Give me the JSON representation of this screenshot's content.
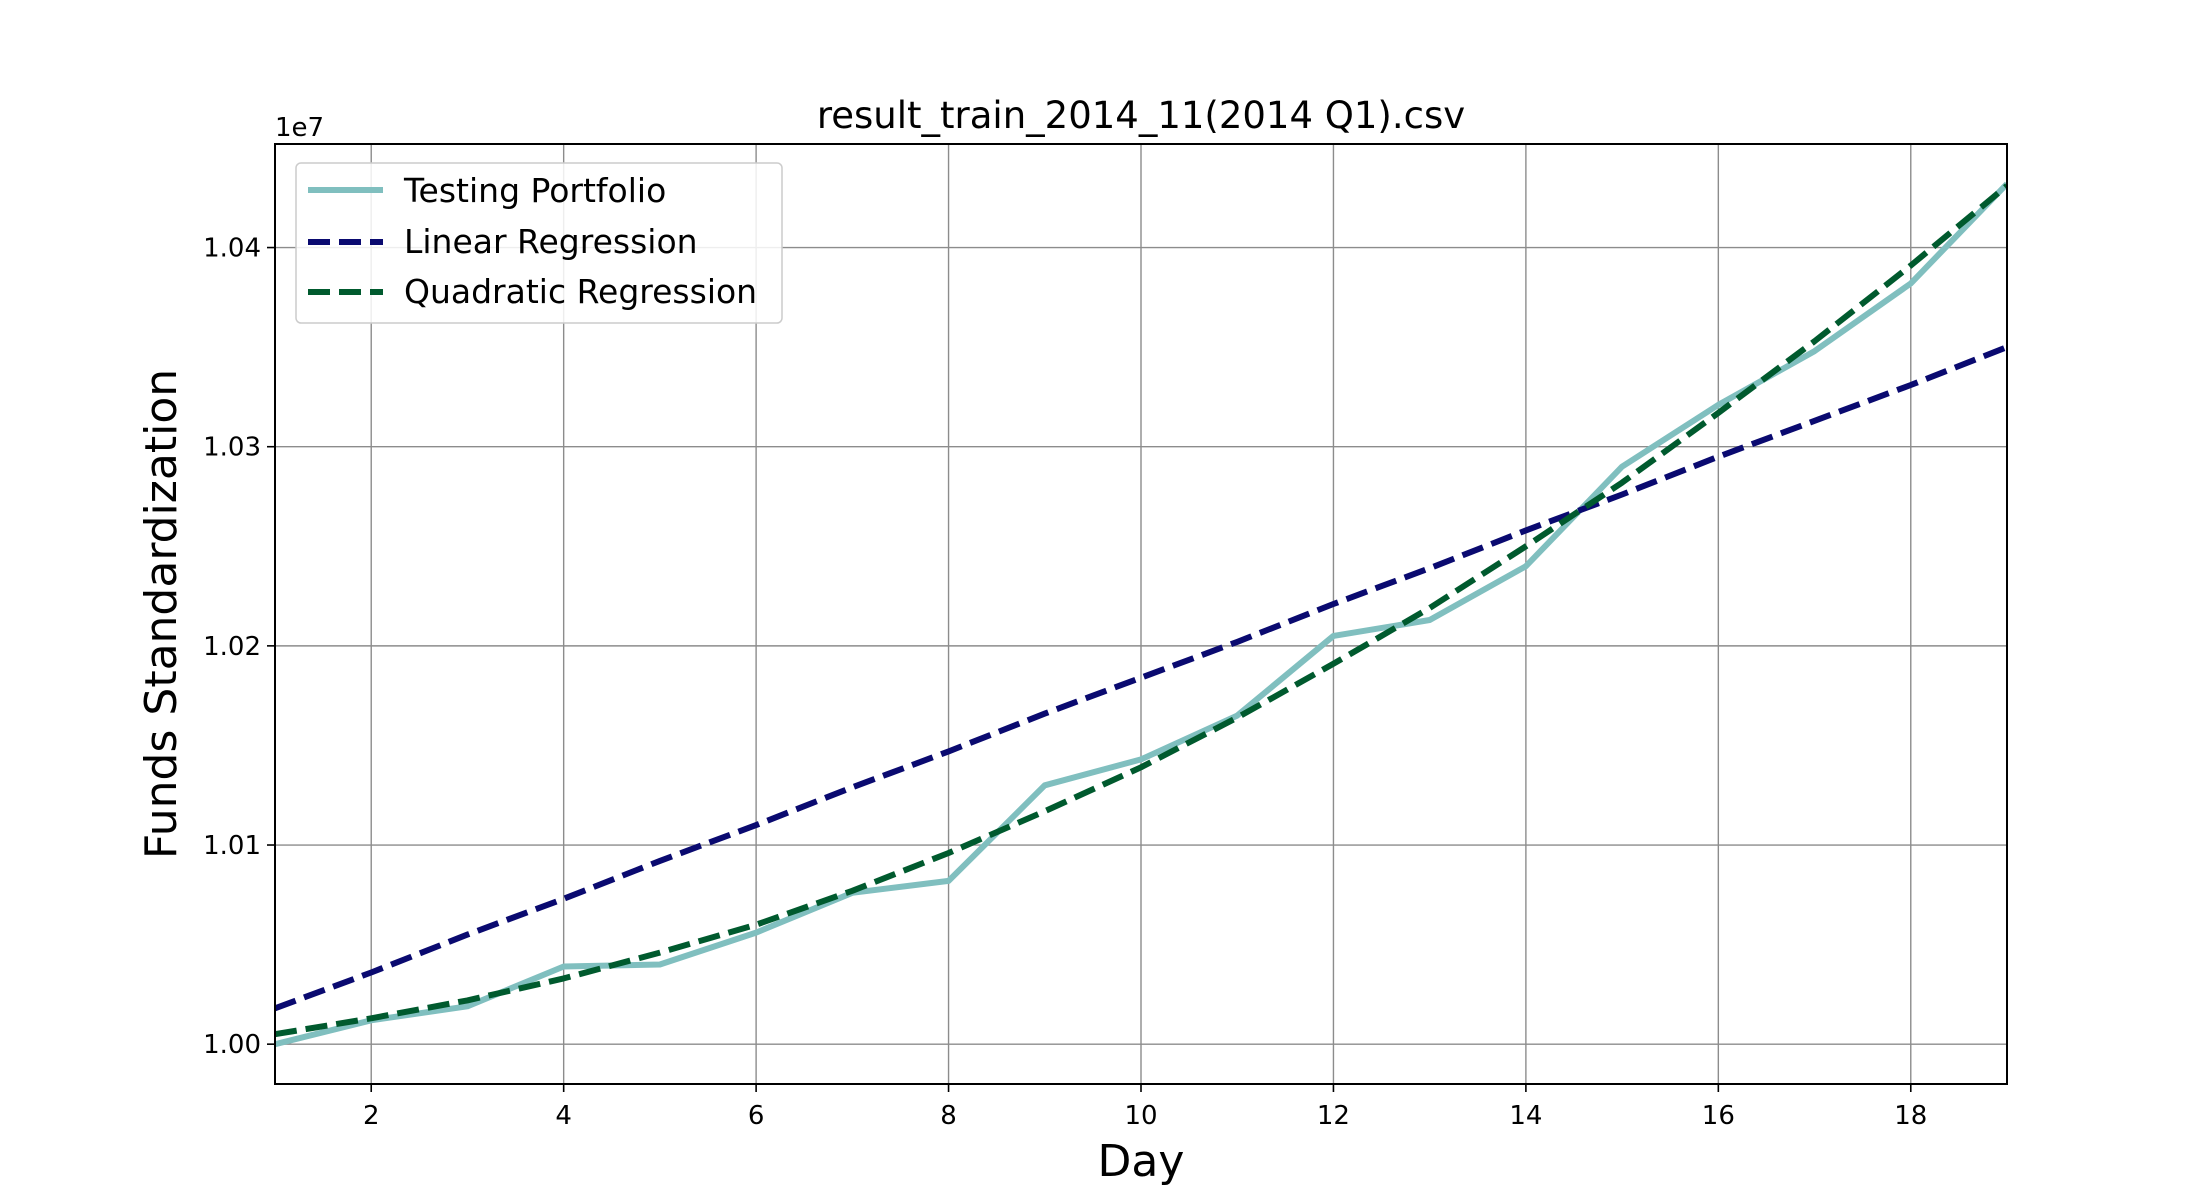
{
  "chart_data": {
    "type": "line",
    "title": "result_train_2014_11(2014 Q1).csv",
    "xlabel": "Day",
    "ylabel": "Funds Standardization",
    "y_offset_label": "1e7",
    "xlim": [
      1,
      19
    ],
    "ylim": [
      0.998,
      1.0452
    ],
    "x_ticks": [
      2,
      4,
      6,
      8,
      10,
      12,
      14,
      16,
      18
    ],
    "y_ticks": [
      1.0,
      1.01,
      1.02,
      1.03,
      1.04
    ],
    "y_tick_labels": [
      "1.00",
      "1.01",
      "1.02",
      "1.03",
      "1.04"
    ],
    "grid": true,
    "legend_position": "top-left",
    "x": [
      1,
      2,
      3,
      4,
      5,
      6,
      7,
      8,
      9,
      10,
      11,
      12,
      13,
      14,
      15,
      16,
      17,
      18,
      19
    ],
    "series": [
      {
        "name": "Testing Portfolio",
        "style": "solid",
        "color": "#80bfbf",
        "values": [
          1.0,
          1.0012,
          1.0019,
          1.0039,
          1.004,
          1.0056,
          1.0076,
          1.0082,
          1.013,
          1.0143,
          1.0165,
          1.0205,
          1.0213,
          1.024,
          1.029,
          1.0321,
          1.0348,
          1.0382,
          1.0432
        ]
      },
      {
        "name": "Linear Regression",
        "style": "dashed",
        "color": "#0a0a70",
        "values": [
          1.0018,
          1.0036,
          1.0055,
          1.0073,
          1.0092,
          1.011,
          1.0129,
          1.0147,
          1.0166,
          1.0184,
          1.0202,
          1.0221,
          1.0239,
          1.0258,
          1.0276,
          1.0295,
          1.0313,
          1.0331,
          1.035
        ]
      },
      {
        "name": "Quadratic Regression",
        "style": "dashed",
        "color": "#005a2e",
        "values": [
          1.0005,
          1.0013,
          1.0022,
          1.0033,
          1.0046,
          1.006,
          1.0077,
          1.0096,
          1.0117,
          1.0139,
          1.0164,
          1.0191,
          1.0219,
          1.025,
          1.0282,
          1.0317,
          1.0353,
          1.0391,
          1.0431
        ]
      }
    ]
  }
}
